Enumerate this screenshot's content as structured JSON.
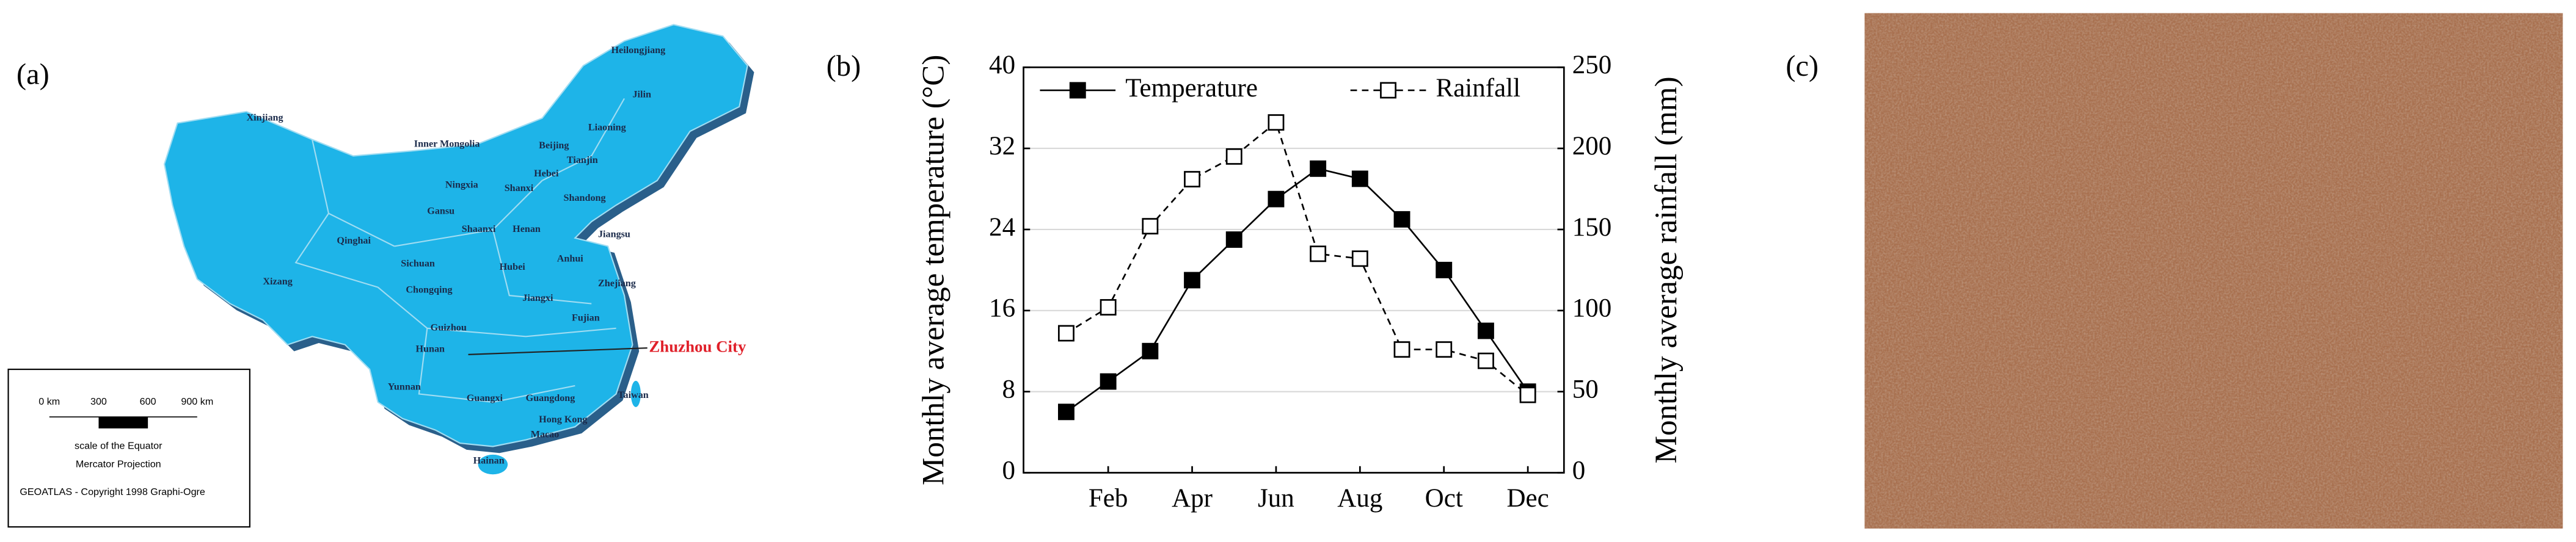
{
  "panel_labels": [
    "(a)",
    "(b)",
    "(c)"
  ],
  "map": {
    "labels": [
      "Heilongjiang",
      "Jilin",
      "Liaoning",
      "Inner Mongolia",
      "Xinjiang",
      "Beijing",
      "Tianjin",
      "Hebei",
      "Qinghai",
      "Ningxia",
      "Shanxi",
      "Shandong",
      "Gansu",
      "Shaanxi",
      "Henan",
      "Jiangsu",
      "Xizang",
      "Sichuan",
      "Hubei",
      "Anhui",
      "Chongqing",
      "Zhejiang",
      "Hunan",
      "Jiangxi",
      "Guizhou",
      "Fujian",
      "Yunnan",
      "Guangxi",
      "Guangdong",
      "Taiwan",
      "Hong Kong",
      "Macao",
      "Hainan"
    ],
    "highlight": "Zhuzhou City",
    "scale": {
      "ticks": [
        "0 km",
        "300",
        "600",
        "900 km"
      ],
      "caption": "scale of the Equator",
      "projection": "Mercator Projection",
      "credit": "GEOATLAS - Copyright 1998 Graphi-Ogre"
    }
  },
  "chart_data": {
    "type": "line",
    "y_label": "Monthly average temperature (°C)",
    "y2_label": "Monthly average rainfall (mm)",
    "categories": [
      null,
      "Feb",
      null,
      "Apr",
      null,
      "Jun",
      null,
      "Aug",
      null,
      "Oct",
      null,
      "Dec"
    ],
    "series": [
      {
        "name": "Temperature",
        "color": "#000000",
        "marker": "filled",
        "dash": false,
        "values": [
          6,
          9,
          12,
          19,
          23,
          27,
          30,
          29,
          25,
          20,
          14,
          8
        ]
      },
      {
        "name": "Rainfall",
        "color": "#000000",
        "marker": "open",
        "dash": true,
        "axis": "y2",
        "values": [
          86,
          102,
          152,
          181,
          195,
          216,
          135,
          132,
          76,
          76,
          69,
          48
        ]
      }
    ],
    "ylim": [
      0,
      40
    ],
    "yticks": [
      0,
      8,
      16,
      24,
      32,
      40
    ],
    "y2lim": [
      0,
      250
    ],
    "y2ticks": [
      0,
      50,
      100,
      150,
      200,
      250
    ],
    "grid": true,
    "legend": "top"
  }
}
